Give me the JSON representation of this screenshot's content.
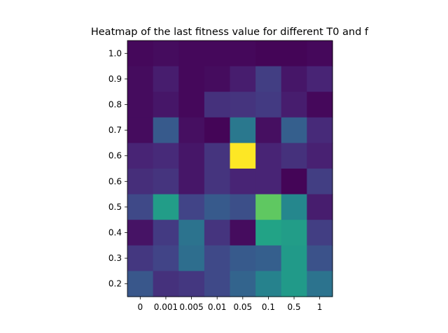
{
  "chart_data": {
    "type": "heatmap",
    "title": "Heatmap of the last fitness value for different T0 and f",
    "xlabel": "",
    "ylabel": "",
    "x_ticks": [
      "0",
      "0.001",
      "0.005",
      "0.01",
      "0.05",
      "0.1",
      "0.5",
      "1"
    ],
    "y_ticks": [
      "1.0",
      "0.9",
      "0.8",
      "0.7",
      "0.6",
      "0.6",
      "0.5",
      "0.4",
      "0.3",
      "0.2"
    ],
    "colormap": "viridis",
    "grid": false,
    "legend": "none",
    "values": [
      [
        0.02,
        0.03,
        0.02,
        0.02,
        0.02,
        0.01,
        0.01,
        0.02
      ],
      [
        0.03,
        0.08,
        0.02,
        0.03,
        0.08,
        0.18,
        0.06,
        0.1
      ],
      [
        0.03,
        0.06,
        0.02,
        0.14,
        0.15,
        0.17,
        0.08,
        0.02
      ],
      [
        0.03,
        0.28,
        0.04,
        0.01,
        0.4,
        0.04,
        0.3,
        0.12
      ],
      [
        0.1,
        0.12,
        0.06,
        0.15,
        1.0,
        0.1,
        0.14,
        0.09
      ],
      [
        0.13,
        0.15,
        0.06,
        0.15,
        0.1,
        0.1,
        0.01,
        0.18
      ],
      [
        0.22,
        0.55,
        0.2,
        0.28,
        0.24,
        0.75,
        0.46,
        0.08
      ],
      [
        0.05,
        0.17,
        0.38,
        0.15,
        0.03,
        0.58,
        0.55,
        0.18
      ],
      [
        0.16,
        0.2,
        0.36,
        0.22,
        0.28,
        0.3,
        0.54,
        0.25
      ],
      [
        0.27,
        0.14,
        0.16,
        0.22,
        0.32,
        0.44,
        0.54,
        0.38
      ]
    ]
  }
}
